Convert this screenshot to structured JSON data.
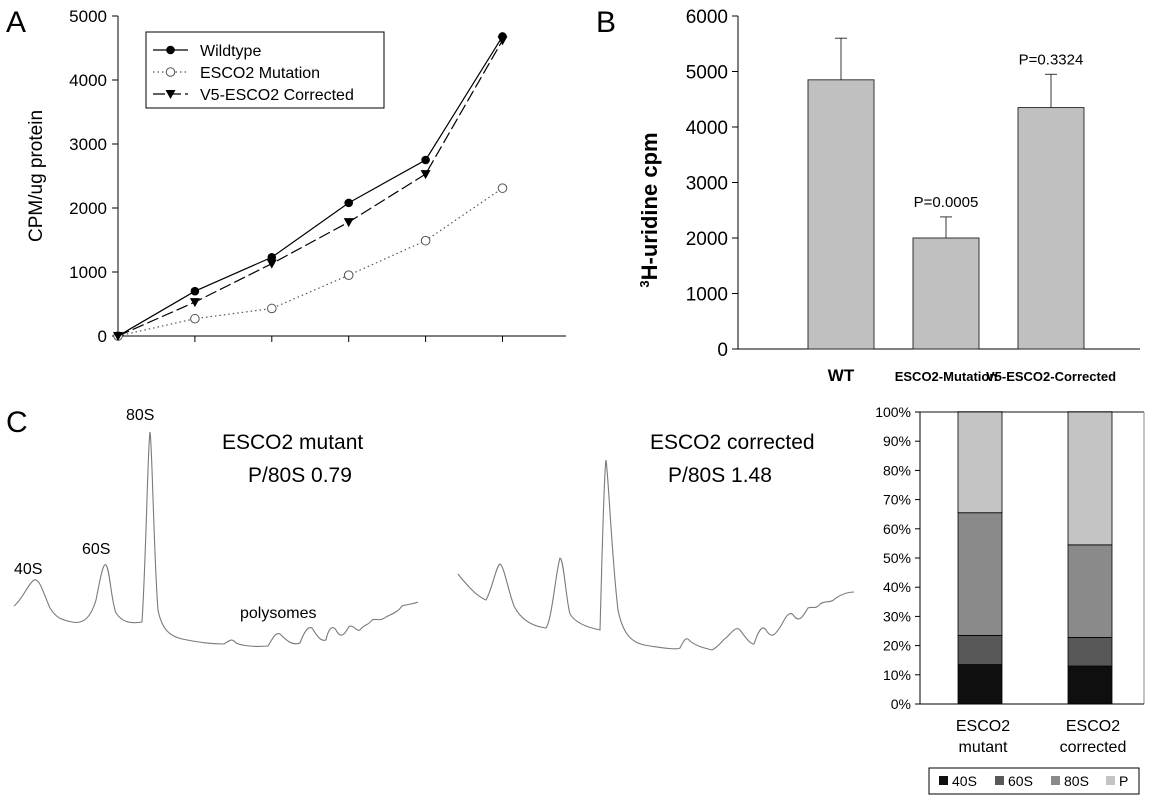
{
  "panels": {
    "A": {
      "letter": "A"
    },
    "B": {
      "letter": "B"
    },
    "C": {
      "letter": "C"
    }
  },
  "chart_data": [
    {
      "id": "A",
      "type": "line",
      "title": "",
      "xlabel": "",
      "ylabel": "CPM/ug protein",
      "ylim": [
        0,
        5000
      ],
      "yticks": [
        0,
        1000,
        2000,
        3000,
        4000,
        5000
      ],
      "x": [
        0,
        1,
        2,
        3,
        4,
        5
      ],
      "legend_position": "top-left",
      "series": [
        {
          "name": "Wildtype",
          "values": [
            0,
            700,
            1230,
            2080,
            2750,
            4680
          ],
          "color": "#000000",
          "marker": "filled-circle",
          "line": "solid"
        },
        {
          "name": "ESCO2 Mutation",
          "values": [
            0,
            270,
            430,
            950,
            1490,
            2310
          ],
          "color": "#555555",
          "marker": "open-circle",
          "line": "dotted"
        },
        {
          "name": "V5-ESCO2 Corrected",
          "values": [
            0,
            530,
            1130,
            1780,
            2530,
            4620
          ],
          "color": "#000000",
          "marker": "filled-triangle-down",
          "line": "dashed"
        }
      ]
    },
    {
      "id": "B",
      "type": "bar",
      "ylabel_sup": "3",
      "ylabel": "H-uridine cpm",
      "ylim": [
        0,
        6000
      ],
      "yticks": [
        0,
        1000,
        2000,
        3000,
        4000,
        5000,
        6000
      ],
      "categories": [
        "WT",
        "ESCO2-Mutation",
        "V5-ESCO2-Corrected"
      ],
      "values": [
        4850,
        2000,
        4350
      ],
      "errors": [
        750,
        380,
        600
      ],
      "annotations": [
        "",
        "P=0.0005",
        "P=0.3324"
      ],
      "bar_color": "#c0c0c0"
    },
    {
      "id": "C-profile-mutant",
      "type": "line",
      "title_line1": "ESCO2 mutant",
      "title_line2": "P/80S 0.79",
      "peak_labels": [
        "40S",
        "60S",
        "80S",
        "polysomes"
      ]
    },
    {
      "id": "C-profile-corrected",
      "type": "line",
      "title_line1": "ESCO2 corrected",
      "title_line2": "P/80S 1.48"
    },
    {
      "id": "C-stacked",
      "type": "bar",
      "stacked": true,
      "ylim": [
        0,
        100
      ],
      "yticks": [
        "0%",
        "10%",
        "20%",
        "30%",
        "40%",
        "50%",
        "60%",
        "70%",
        "80%",
        "90%",
        "100%"
      ],
      "categories": [
        [
          "ESCO2",
          "mutant"
        ],
        [
          "ESCO2",
          "corrected"
        ]
      ],
      "legend_position": "bottom",
      "series": [
        {
          "name": "40S",
          "values": [
            13.5,
            13
          ],
          "color": "#0f0f0f"
        },
        {
          "name": "60S",
          "values": [
            10,
            9.8
          ],
          "color": "#585858"
        },
        {
          "name": "80S",
          "values": [
            42,
            31.7
          ],
          "color": "#8a8a8a"
        },
        {
          "name": "P",
          "values": [
            34.5,
            45.5
          ],
          "color": "#c4c4c4"
        }
      ]
    }
  ]
}
